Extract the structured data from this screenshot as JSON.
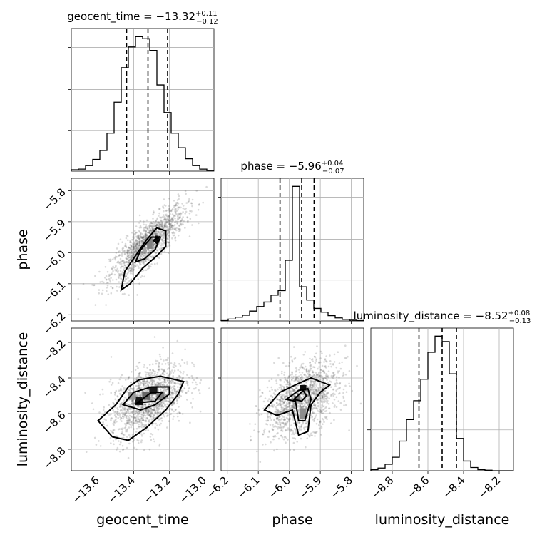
{
  "chart_data": {
    "type": "corner",
    "parameters": [
      {
        "name": "geocent_time",
        "title": {
          "base": "geocent_time = −13.32",
          "plus": "+0.11",
          "minus": "−0.12"
        },
        "range": [
          -13.75,
          -12.95
        ],
        "ticks": [
          -13.6,
          -13.4,
          -13.2,
          -13.0
        ],
        "tick_labels": [
          "−13.6",
          "−13.4",
          "−13.2",
          "−13.0"
        ],
        "quantiles": [
          -13.44,
          -13.32,
          -13.21
        ],
        "hist_edges_start": -13.75,
        "hist_bin_width": 0.04,
        "hist_counts": [
          2,
          3,
          8,
          17,
          30,
          55,
          100,
          150,
          180,
          195,
          192,
          175,
          125,
          85,
          55,
          34,
          18,
          8,
          3,
          1
        ]
      },
      {
        "name": "phase",
        "title": {
          "base": "phase = −5.96",
          "plus": "+0.04",
          "minus": "−0.07"
        },
        "range": [
          -6.22,
          -5.76
        ],
        "ticks": [
          -6.2,
          -6.1,
          -6.0,
          -5.9,
          -5.8
        ],
        "tick_labels": [
          "−6.2",
          "−6.1",
          "−6.0",
          "−5.9",
          "−5.8"
        ],
        "quantiles": [
          -6.03,
          -5.96,
          -5.92
        ],
        "hist_edges_start": -6.22,
        "hist_bin_width": 0.023,
        "hist_counts": [
          1,
          5,
          10,
          15,
          26,
          38,
          50,
          68,
          80,
          160,
          355,
          90,
          55,
          33,
          23,
          14,
          8,
          4,
          2,
          1
        ]
      },
      {
        "name": "luminosity_distance",
        "title": {
          "base": "luminosity_distance = −8.52",
          "plus": "+0.08",
          "minus": "−0.13"
        },
        "range": [
          -8.92,
          -8.12
        ],
        "ticks": [
          -8.8,
          -8.6,
          -8.4,
          -8.2
        ],
        "tick_labels": [
          "−8.8",
          "−8.6",
          "−8.4",
          "−8.2"
        ],
        "quantiles": [
          -8.65,
          -8.52,
          -8.44
        ],
        "hist_edges_start": -8.92,
        "hist_bin_width": 0.04,
        "hist_counts": [
          2,
          5,
          12,
          25,
          55,
          95,
          130,
          170,
          220,
          250,
          240,
          180,
          60,
          18,
          6,
          2,
          1,
          0,
          0,
          0
        ]
      }
    ],
    "axis_labels": {
      "x": [
        "geocent_time",
        "phase",
        "luminosity_distance"
      ],
      "y": [
        "phase",
        "luminosity_distance"
      ]
    },
    "pairs": [
      {
        "x": "geocent_time",
        "y": "phase",
        "correlation": 0.82,
        "center": [
          -13.32,
          -5.97
        ],
        "contours": [
          [
            [
              -13.47,
              -6.12
            ],
            [
              -13.45,
              -6.06
            ],
            [
              -13.39,
              -6.01
            ],
            [
              -13.33,
              -5.96
            ],
            [
              -13.27,
              -5.92
            ],
            [
              -13.22,
              -5.93
            ],
            [
              -13.22,
              -5.98
            ],
            [
              -13.27,
              -6.01
            ],
            [
              -13.35,
              -6.05
            ],
            [
              -13.42,
              -6.1
            ]
          ],
          [
            [
              -13.39,
              -6.03
            ],
            [
              -13.36,
              -5.99
            ],
            [
              -13.3,
              -5.95
            ],
            [
              -13.25,
              -5.95
            ],
            [
              -13.28,
              -5.99
            ],
            [
              -13.34,
              -6.02
            ]
          ],
          [
            [
              -13.29,
              -5.96
            ],
            [
              -13.26,
              -5.95
            ],
            [
              -13.27,
              -5.97
            ]
          ]
        ],
        "bins2d": [
          {
            "x": -13.27,
            "y": -5.955,
            "w": 0.02,
            "h": 0.02,
            "level": 0.95
          },
          {
            "x": -13.31,
            "y": -5.975,
            "w": 0.03,
            "h": 0.025,
            "level": 0.5
          },
          {
            "x": -13.34,
            "y": -5.99,
            "w": 0.02,
            "h": 0.02,
            "level": 0.35
          }
        ]
      },
      {
        "x": "geocent_time",
        "y": "luminosity_distance",
        "correlation": 0.45,
        "center": [
          -13.32,
          -8.52
        ],
        "contours": [
          [
            [
              -13.6,
              -8.64
            ],
            [
              -13.5,
              -8.55
            ],
            [
              -13.43,
              -8.45
            ],
            [
              -13.37,
              -8.41
            ],
            [
              -13.25,
              -8.39
            ],
            [
              -13.12,
              -8.42
            ],
            [
              -13.15,
              -8.49
            ],
            [
              -13.22,
              -8.58
            ],
            [
              -13.33,
              -8.68
            ],
            [
              -13.43,
              -8.75
            ],
            [
              -13.52,
              -8.73
            ]
          ],
          [
            [
              -13.46,
              -8.55
            ],
            [
              -13.4,
              -8.48
            ],
            [
              -13.3,
              -8.45
            ],
            [
              -13.2,
              -8.45
            ],
            [
              -13.2,
              -8.49
            ],
            [
              -13.28,
              -8.55
            ],
            [
              -13.36,
              -8.58
            ]
          ],
          [
            [
              -13.38,
              -8.54
            ],
            [
              -13.3,
              -8.48
            ],
            [
              -13.24,
              -8.48
            ],
            [
              -13.28,
              -8.53
            ]
          ]
        ],
        "bins2d": [
          {
            "x": -13.29,
            "y": -8.47,
            "w": 0.045,
            "h": 0.045,
            "level": 0.9
          },
          {
            "x": -13.37,
            "y": -8.53,
            "w": 0.045,
            "h": 0.045,
            "level": 0.9
          },
          {
            "x": -13.33,
            "y": -8.5,
            "w": 0.045,
            "h": 0.045,
            "level": 0.6
          },
          {
            "x": -13.25,
            "y": -8.5,
            "w": 0.045,
            "h": 0.045,
            "level": 0.5
          },
          {
            "x": -13.41,
            "y": -8.5,
            "w": 0.045,
            "h": 0.045,
            "level": 0.4
          }
        ]
      },
      {
        "x": "phase",
        "y": "luminosity_distance",
        "correlation": 0.42,
        "center": [
          -5.96,
          -8.52
        ],
        "contours": [
          [
            [
              -6.08,
              -8.58
            ],
            [
              -6.03,
              -8.48
            ],
            [
              -5.97,
              -8.43
            ],
            [
              -5.93,
              -8.4
            ],
            [
              -5.87,
              -8.44
            ],
            [
              -5.9,
              -8.48
            ],
            [
              -5.93,
              -8.55
            ],
            [
              -5.94,
              -8.7
            ],
            [
              -5.97,
              -8.72
            ],
            [
              -5.99,
              -8.58
            ],
            [
              -6.04,
              -8.61
            ]
          ],
          [
            [
              -6.01,
              -8.52
            ],
            [
              -5.97,
              -8.47
            ],
            [
              -5.94,
              -8.46
            ],
            [
              -5.93,
              -8.52
            ],
            [
              -5.95,
              -8.64
            ],
            [
              -5.97,
              -8.64
            ],
            [
              -5.98,
              -8.53
            ]
          ],
          [
            [
              -5.985,
              -8.52
            ],
            [
              -5.955,
              -8.47
            ],
            [
              -5.945,
              -8.5
            ],
            [
              -5.96,
              -8.53
            ]
          ]
        ],
        "bins2d": [
          {
            "x": -5.955,
            "y": -8.455,
            "w": 0.02,
            "h": 0.03,
            "level": 0.95
          },
          {
            "x": -5.975,
            "y": -8.515,
            "w": 0.02,
            "h": 0.03,
            "level": 0.55
          },
          {
            "x": -5.955,
            "y": -8.6,
            "w": 0.02,
            "h": 0.06,
            "level": 0.45
          }
        ]
      }
    ],
    "grid": true,
    "colors": {
      "line": "#000000",
      "grid": "#b0b0b0",
      "scatter": "#555555"
    }
  }
}
